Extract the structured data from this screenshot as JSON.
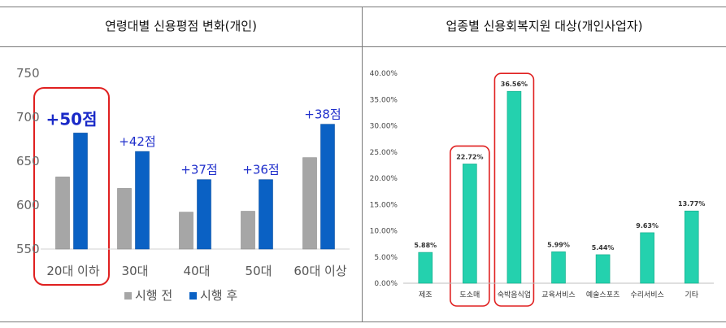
{
  "left_title": "연령대별 신용평점 변화(개인)",
  "right_title": "업종별 신용회복지원 대상(개인사업자)",
  "chart_data": [
    {
      "type": "bar",
      "categories": [
        "20대 이하",
        "30대",
        "40대",
        "50대",
        "60대 이상"
      ],
      "series": [
        {
          "name": "시행 전",
          "values": [
            632,
            619,
            592,
            593,
            654
          ],
          "color": "#a6a6a6"
        },
        {
          "name": "시행 후",
          "values": [
            682,
            661,
            629,
            629,
            692
          ],
          "color": "#0a61c4"
        }
      ],
      "annotations": [
        "+50점",
        "+42점",
        "+37점",
        "+36점",
        "+38점"
      ],
      "yticks": [
        "750",
        "700",
        "650",
        "600",
        "550"
      ],
      "ylim": [
        550,
        750
      ],
      "grid": false,
      "legend": "bottom",
      "highlight_category": "20대 이하"
    },
    {
      "type": "bar",
      "categories": [
        "제조",
        "도소매",
        "숙박음식업",
        "교육서비스",
        "예술스포츠",
        "수리서비스",
        "기타"
      ],
      "values": [
        5.88,
        22.72,
        36.56,
        5.99,
        5.44,
        9.63,
        13.77
      ],
      "value_labels": [
        "5.88%",
        "22.72%",
        "36.56%",
        "5.99%",
        "5.44%",
        "9.63%",
        "13.77%"
      ],
      "yticks": [
        "40.00%",
        "35.00%",
        "30.00%",
        "25.00%",
        "20.00%",
        "15.00%",
        "10.00%",
        "5.00%",
        "0.00%"
      ],
      "ylim": [
        0,
        40
      ],
      "color": "#24d1ae",
      "grid": false,
      "highlight_categories": [
        "도소매",
        "숙박음식업"
      ]
    }
  ]
}
